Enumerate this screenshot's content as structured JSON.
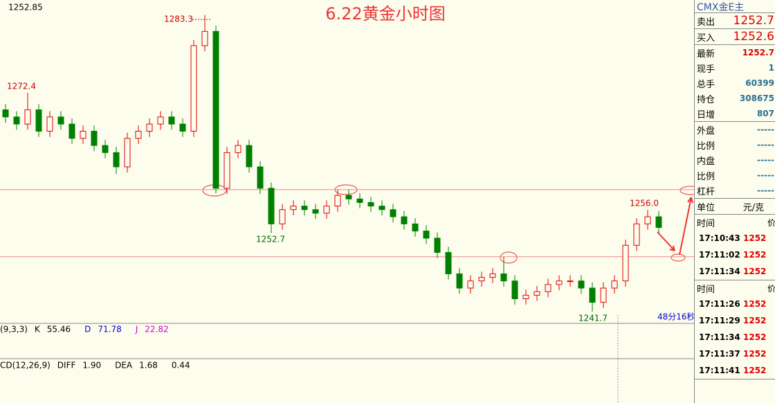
{
  "chart_data": {
    "type": "candlestick",
    "title": "6.22黄金小时图",
    "price_label": 1252.85,
    "ylim": [
      1240.05,
      1285.4
    ],
    "levels": [
      1258.8,
      1249.4
    ],
    "up_color": "#e00000",
    "down_color": "#008000",
    "annotations": [
      "1283.3",
      "1272.4",
      "1252.7",
      "1256.0",
      "1241.7"
    ],
    "countdown": "48分16秒",
    "open": [
      1270,
      1269,
      1268,
      1270,
      1267,
      1269,
      1268,
      1266,
      1267,
      1265,
      1264,
      1262,
      1266,
      1267,
      1268,
      1269,
      1268,
      1267,
      1279,
      1281,
      1259,
      1264,
      1265,
      1262,
      1259,
      1254,
      1256,
      1256.5,
      1256,
      1255.5,
      1256.5,
      1258,
      1257.5,
      1257,
      1256.5,
      1256,
      1255,
      1254,
      1253,
      1252,
      1250,
      1247,
      1245,
      1246,
      1246.5,
      1247,
      1246,
      1243.5,
      1244,
      1244.5,
      1245.5,
      1246,
      1246,
      1245,
      1243,
      1245,
      1246,
      1251,
      1254,
      1255
    ],
    "high": [
      1270.8,
      1269.8,
      1272.4,
      1270.8,
      1269.8,
      1269.8,
      1268.8,
      1267.8,
      1267.8,
      1265.8,
      1264.8,
      1266.8,
      1267.8,
      1268.8,
      1269.8,
      1269.8,
      1268.8,
      1279.8,
      1283.3,
      1281.8,
      1264.8,
      1265.8,
      1265.8,
      1262.8,
      1259.8,
      1256.8,
      1257.3,
      1257.3,
      1256.8,
      1257.3,
      1258.8,
      1258.8,
      1258.3,
      1257.8,
      1257.3,
      1256.8,
      1255.8,
      1254.8,
      1253.8,
      1252.8,
      1250.8,
      1247.8,
      1246.8,
      1247.3,
      1247.8,
      1249.4,
      1246.8,
      1244.8,
      1245.3,
      1246.3,
      1246.8,
      1246.8,
      1246.8,
      1245.8,
      1245.8,
      1246.8,
      1251.8,
      1254.8,
      1256,
      1255.8
    ],
    "low": [
      1268.2,
      1267.2,
      1267.2,
      1266.2,
      1266.2,
      1267.2,
      1265.2,
      1265.2,
      1264.2,
      1263.2,
      1261,
      1261.2,
      1265.2,
      1266.2,
      1267.2,
      1267.2,
      1266.2,
      1266.2,
      1278.2,
      1258.3,
      1258.2,
      1263.2,
      1261.2,
      1258.2,
      1252.7,
      1253.2,
      1255.2,
      1255.2,
      1254.7,
      1254.7,
      1255.7,
      1256.7,
      1256.2,
      1255.7,
      1255.2,
      1254.2,
      1253.2,
      1252.2,
      1251.2,
      1249.2,
      1246.2,
      1244.2,
      1244.2,
      1245.2,
      1245.7,
      1245.2,
      1242.7,
      1242.7,
      1243.2,
      1243.7,
      1244.7,
      1245.2,
      1244.2,
      1241.7,
      1242.2,
      1244.2,
      1245.2,
      1250.2,
      1253.2,
      1252.7
    ],
    "close": [
      1269,
      1268,
      1270,
      1267,
      1269,
      1268,
      1266,
      1267,
      1265,
      1264,
      1262,
      1266,
      1267,
      1268,
      1269,
      1268,
      1267,
      1279,
      1281,
      1259,
      1264,
      1265,
      1262,
      1259,
      1254,
      1256,
      1256.5,
      1256,
      1255.5,
      1256.5,
      1258,
      1257.5,
      1257,
      1256.5,
      1256,
      1255,
      1254,
      1253,
      1252,
      1250,
      1247,
      1245,
      1246,
      1246.5,
      1247,
      1246,
      1243.5,
      1244,
      1244.5,
      1245.5,
      1246,
      1246,
      1245,
      1243,
      1245,
      1246,
      1251,
      1254,
      1255,
      1253.5
    ],
    "kdj": {
      "name": "(9,3,3)",
      "items": [
        [
          "K",
          "55.46"
        ],
        [
          "D",
          "71.78"
        ],
        [
          "J",
          "22.82"
        ]
      ]
    },
    "macd": {
      "name": "CD(12,26,9)",
      "items": [
        [
          "DIFF",
          "1.90"
        ],
        [
          "DEA",
          "1.68"
        ],
        [
          "",
          "0.44"
        ]
      ]
    }
  },
  "quote": {
    "header": "CMX金E主",
    "rows": [
      [
        "卖出",
        "1252.7"
      ],
      [
        "买入",
        "1252.6"
      ],
      [
        "最新",
        "1252.7"
      ],
      [
        "现手",
        "1"
      ],
      [
        "总手",
        "60399"
      ],
      [
        "持仓",
        "308675"
      ],
      [
        "日增",
        "807"
      ],
      [
        "外盘",
        "-----"
      ],
      [
        "比例",
        "-----"
      ],
      [
        "内盘",
        "-----"
      ],
      [
        "比例",
        "-----"
      ],
      [
        "杠杆",
        "-----"
      ]
    ],
    "unit": [
      "单位",
      "元/克"
    ],
    "ticks1": {
      "head": [
        "时间",
        "价"
      ],
      "rows": [
        [
          "17:10:43",
          "1252"
        ],
        [
          "17:11:02",
          "1252"
        ],
        [
          "17:11:34",
          "1252"
        ]
      ]
    },
    "ticks2": {
      "head": [
        "时间",
        "价"
      ],
      "rows": [
        [
          "17:11:26",
          "1252"
        ],
        [
          "17:11:29",
          "1252"
        ],
        [
          "17:11:34",
          "1252"
        ],
        [
          "17:11:37",
          "1252"
        ],
        [
          "17:11:41",
          "1252"
        ]
      ]
    }
  }
}
